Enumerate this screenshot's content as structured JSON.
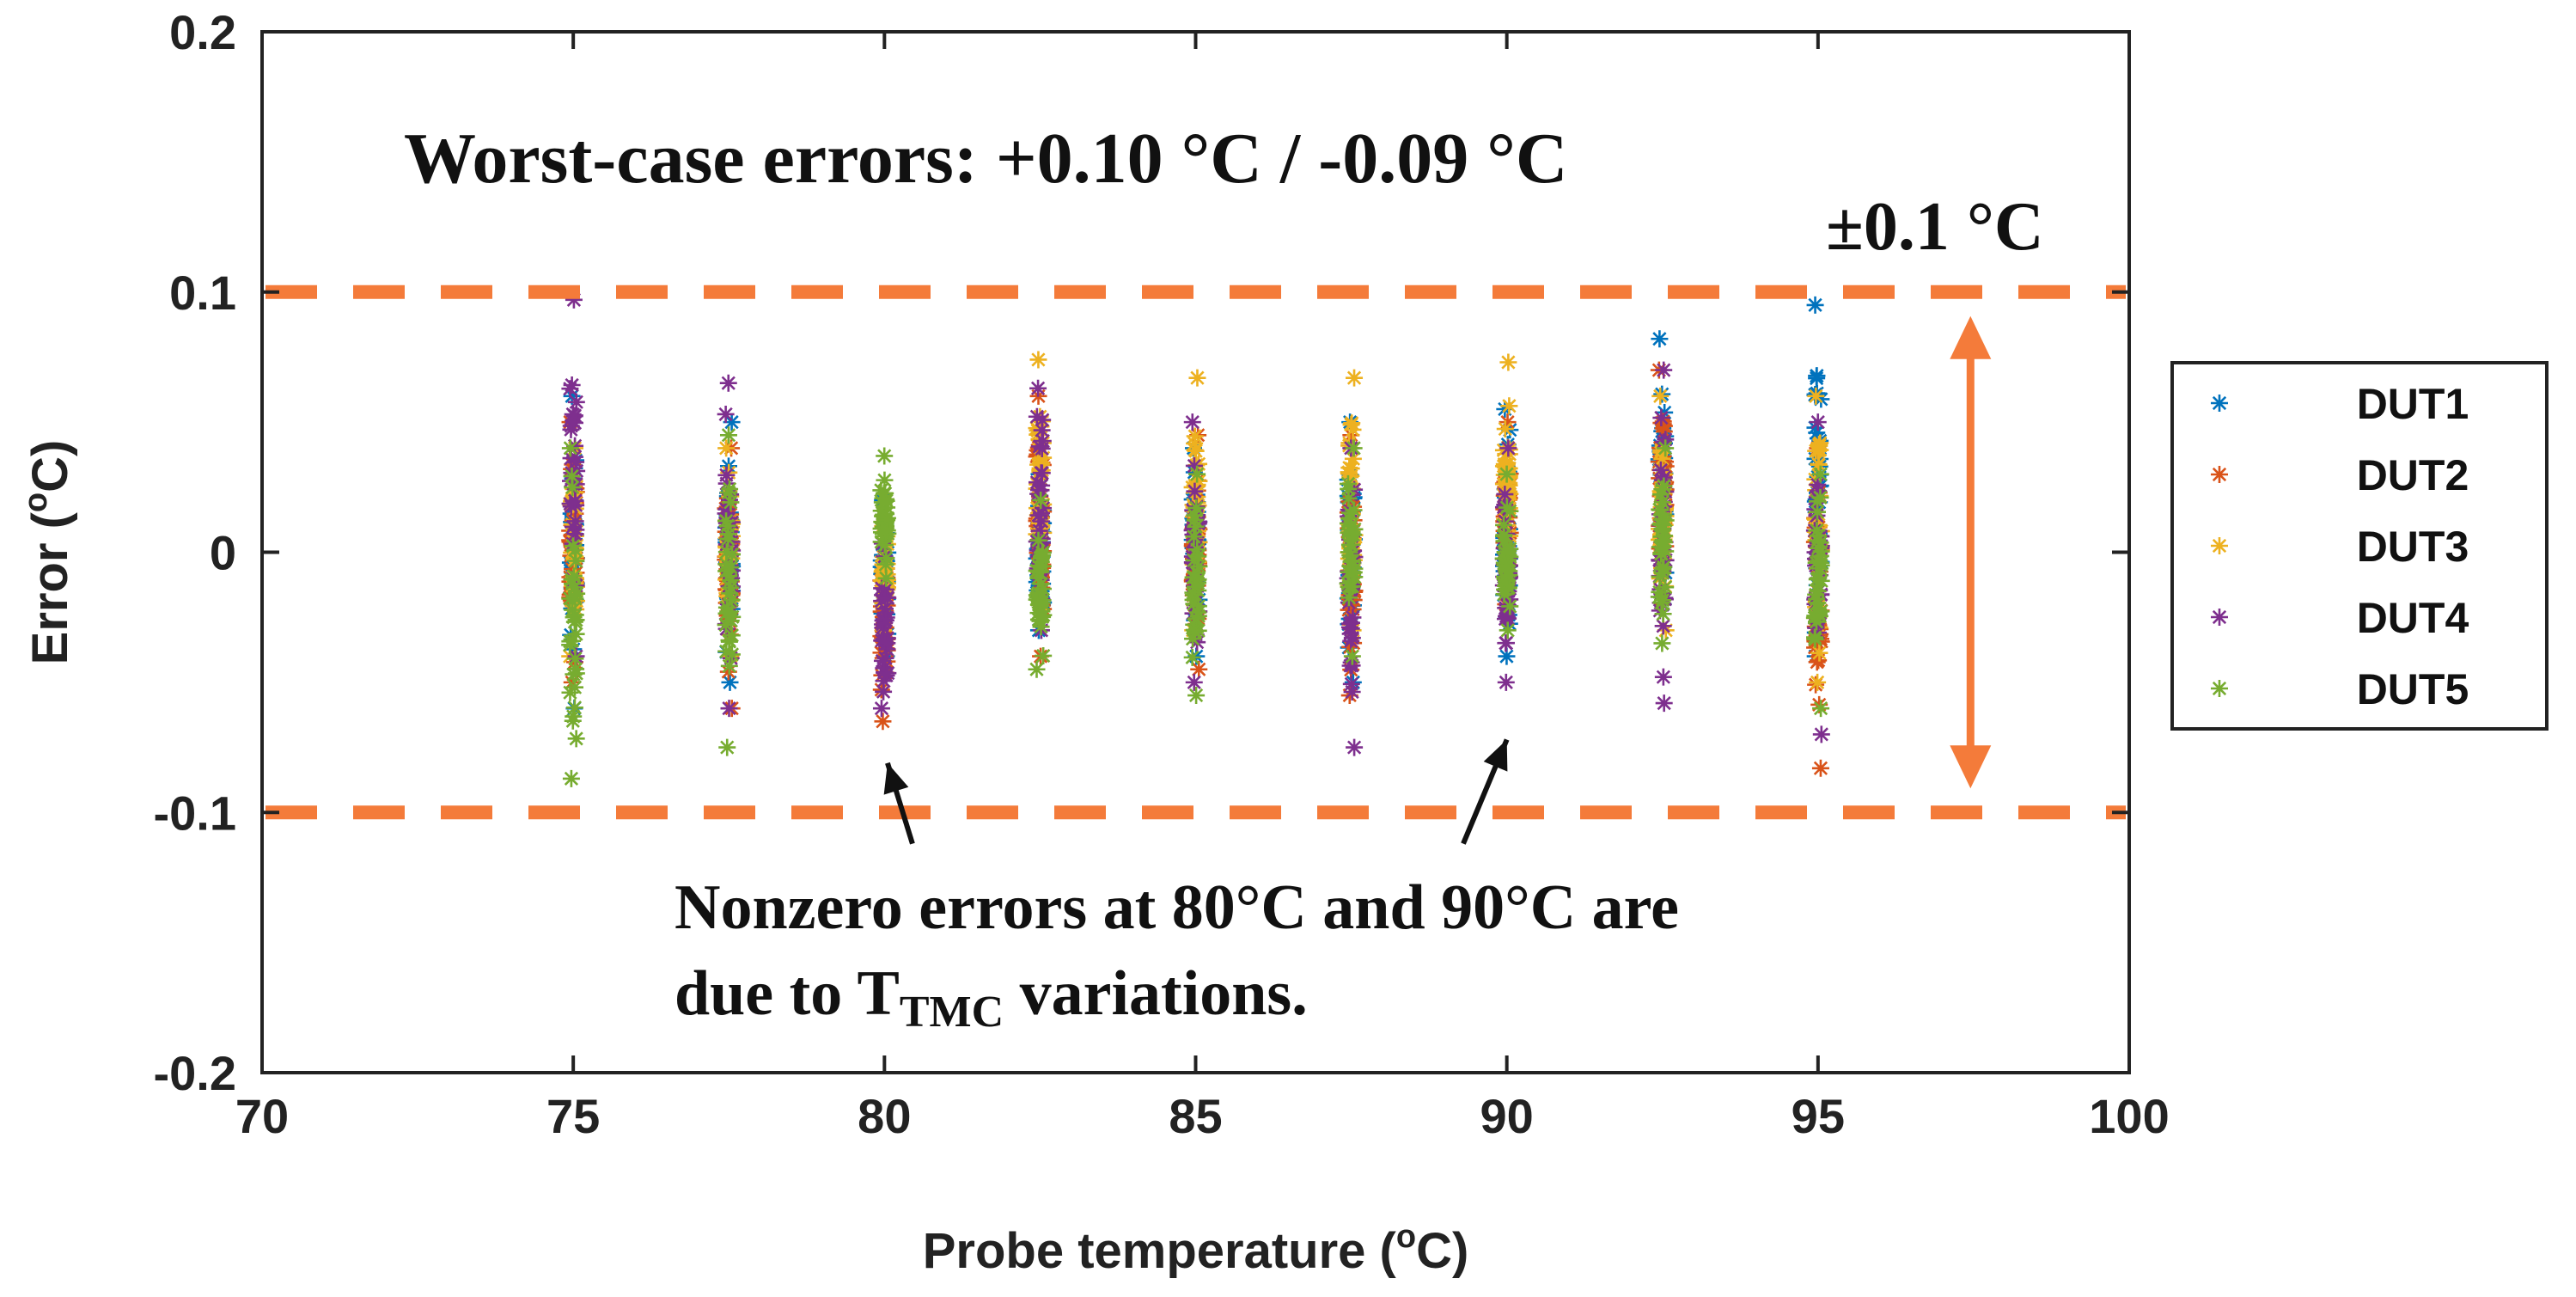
{
  "chart_data": {
    "type": "scatter",
    "title": "",
    "xlabel": "Probe temperature (°C)",
    "xlabel_pre": "Probe temperature (",
    "xlabel_sup": "o",
    "xlabel_post": "C)",
    "ylabel": "Error (°C)",
    "ylabel_pre": "Error (",
    "ylabel_sup": "o",
    "ylabel_post": "C)",
    "xlim": [
      70,
      100
    ],
    "ylim": [
      -0.2,
      0.2
    ],
    "x_ticks": [
      70,
      75,
      80,
      85,
      90,
      95,
      100
    ],
    "y_ticks": [
      -0.2,
      -0.1,
      0,
      0.1,
      0.2
    ],
    "x_tick_labels": [
      "70",
      "75",
      "80",
      "85",
      "90",
      "95",
      "100"
    ],
    "y_tick_labels": [
      "-0.2",
      "-0.1",
      "0",
      "0.1",
      "0.2"
    ],
    "marker": "*",
    "x_positions": [
      75,
      77.5,
      80,
      82.5,
      85,
      87.5,
      90,
      92.5,
      95
    ],
    "series": [
      {
        "name": "DUT1",
        "color": "#0072BD",
        "ranges": [
          [
            -0.06,
            0.06
          ],
          [
            -0.05,
            0.05
          ],
          [
            -0.04,
            0.02
          ],
          [
            -0.03,
            0.03
          ],
          [
            -0.04,
            0.04
          ],
          [
            -0.05,
            0.05
          ],
          [
            -0.04,
            0.055
          ],
          [
            -0.02,
            0.082
          ],
          [
            -0.04,
            0.095
          ]
        ]
      },
      {
        "name": "DUT2",
        "color": "#D95319",
        "ranges": [
          [
            -0.05,
            0.05
          ],
          [
            -0.06,
            0.04
          ],
          [
            -0.065,
            0.01
          ],
          [
            -0.04,
            0.06
          ],
          [
            -0.045,
            0.045
          ],
          [
            -0.055,
            0.045
          ],
          [
            -0.02,
            0.05
          ],
          [
            -0.02,
            0.07
          ],
          [
            -0.083,
            0.04
          ]
        ]
      },
      {
        "name": "DUT3",
        "color": "#EDB120",
        "ranges": [
          [
            -0.04,
            0.04
          ],
          [
            -0.04,
            0.04
          ],
          [
            -0.03,
            0.01
          ],
          [
            -0.02,
            0.074
          ],
          [
            -0.03,
            0.067
          ],
          [
            -0.03,
            0.067
          ],
          [
            -0.01,
            0.073
          ],
          [
            -0.03,
            0.06
          ],
          [
            -0.05,
            0.06
          ]
        ]
      },
      {
        "name": "DUT4",
        "color": "#7E2F8E",
        "ranges": [
          [
            -0.04,
            0.097
          ],
          [
            -0.06,
            0.065
          ],
          [
            -0.06,
            0.01
          ],
          [
            -0.03,
            0.063
          ],
          [
            -0.05,
            0.05
          ],
          [
            -0.075,
            0.04
          ],
          [
            -0.05,
            0.04
          ],
          [
            -0.058,
            0.07
          ],
          [
            -0.07,
            0.05
          ]
        ]
      },
      {
        "name": "DUT5",
        "color": "#77AC30",
        "ranges": [
          [
            -0.087,
            0.04
          ],
          [
            -0.075,
            0.045
          ],
          [
            -0.01,
            0.037
          ],
          [
            -0.045,
            0.02
          ],
          [
            -0.055,
            0.03
          ],
          [
            -0.04,
            0.04
          ],
          [
            -0.03,
            0.03
          ],
          [
            -0.035,
            0.04
          ],
          [
            -0.06,
            0.03
          ]
        ]
      }
    ],
    "bounds": {
      "upper": 0.1,
      "lower": -0.1,
      "label": "±0.1 °C",
      "color": "#F47B3A"
    },
    "annotations": {
      "worst_case": "Worst-case errors: +0.10 °C / -0.09 °C",
      "note_line1": "Nonzero errors at 80°C and 90°C are",
      "note_line2_pre": "due to T",
      "note_line2_sub": "TMC",
      "note_line2_post": " variations."
    },
    "legend_position": "right"
  }
}
